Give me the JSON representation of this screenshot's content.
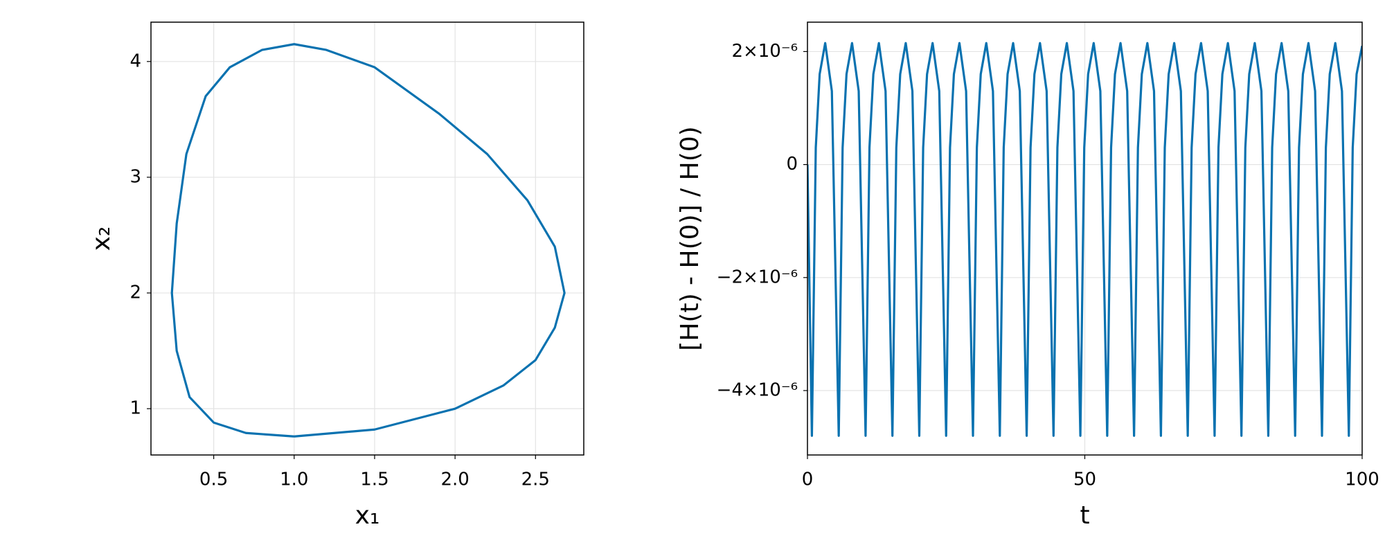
{
  "chart_data": [
    {
      "type": "line",
      "xlabel": "x₁",
      "ylabel": "x₂",
      "color": "#0a72b0",
      "grid": true,
      "x": [
        1.0,
        1.5,
        2.0,
        2.3,
        2.5,
        2.62,
        2.68,
        2.62,
        2.45,
        2.2,
        1.9,
        1.5,
        1.2,
        1.0,
        0.8,
        0.6,
        0.45,
        0.33,
        0.27,
        0.24,
        0.27,
        0.35,
        0.5,
        0.7,
        1.0
      ],
      "values": [
        0.76,
        0.82,
        1.0,
        1.2,
        1.42,
        1.7,
        2.0,
        2.4,
        2.8,
        3.2,
        3.55,
        3.95,
        4.1,
        4.15,
        4.1,
        3.95,
        3.7,
        3.2,
        2.6,
        2.0,
        1.5,
        1.1,
        0.88,
        0.79,
        0.76
      ],
      "xlim": [
        0.11,
        2.8
      ],
      "ylim": [
        0.6,
        4.34
      ],
      "xticks": [
        0.5,
        {
          "value": 1.0,
          "label": "1.0"
        },
        1.5,
        {
          "value": 2.0,
          "label": "2.0"
        },
        2.5
      ],
      "yticks": [
        1,
        2,
        3,
        4
      ]
    },
    {
      "type": "line",
      "xlabel": "t",
      "ylabel": "[H(t) - H(0)] / H(0)",
      "color": "#0a72b0",
      "grid": true,
      "x": [
        0,
        0.8,
        1.5,
        2.2,
        3.2,
        4.4,
        5.64,
        6.34,
        7.04,
        8.04,
        9.24,
        10.48,
        11.18,
        11.88,
        12.88,
        14.08,
        15.32,
        16.02,
        16.72,
        17.72,
        18.92,
        20.16,
        20.86,
        21.56,
        22.56,
        23.76,
        25,
        25.7,
        26.4,
        27.4,
        28.6,
        29.84,
        30.54,
        31.24,
        32.24,
        33.44,
        34.68,
        35.38,
        36.08,
        37.08,
        38.28,
        39.52,
        40.22,
        40.92,
        41.92,
        43.12,
        44.36,
        45.06,
        45.76,
        46.76,
        47.96,
        49.2,
        49.9,
        50.6,
        51.6,
        52.8,
        54.04,
        54.74,
        55.44,
        56.44,
        57.64,
        58.88,
        59.58,
        60.28,
        61.28,
        62.48,
        63.72,
        64.42,
        65.12,
        66.12,
        67.32,
        68.56,
        69.26,
        69.96,
        70.96,
        72.16,
        73.4,
        74.1,
        74.8,
        75.8,
        77,
        78.24,
        78.94,
        79.64,
        80.64,
        81.84,
        83.08,
        83.78,
        84.48,
        85.48,
        86.68,
        87.92,
        88.62,
        89.32,
        90.32,
        91.52,
        92.76,
        93.46,
        94.16,
        95.16,
        96.36,
        97.6,
        98.3,
        99.0,
        100
      ],
      "values": [
        0,
        -4.8e-06,
        3e-07,
        1.6e-06,
        2.15e-06,
        1.3e-06,
        -4.8e-06,
        3e-07,
        1.6e-06,
        2.15e-06,
        1.3e-06,
        -4.8e-06,
        3e-07,
        1.6e-06,
        2.15e-06,
        1.3e-06,
        -4.8e-06,
        3e-07,
        1.6e-06,
        2.15e-06,
        1.3e-06,
        -4.8e-06,
        3e-07,
        1.6e-06,
        2.15e-06,
        1.3e-06,
        -4.8e-06,
        3e-07,
        1.6e-06,
        2.15e-06,
        1.3e-06,
        -4.8e-06,
        3e-07,
        1.6e-06,
        2.15e-06,
        1.3e-06,
        -4.8e-06,
        3e-07,
        1.6e-06,
        2.15e-06,
        1.3e-06,
        -4.8e-06,
        3e-07,
        1.6e-06,
        2.15e-06,
        1.3e-06,
        -4.8e-06,
        3e-07,
        1.6e-06,
        2.15e-06,
        1.3e-06,
        -4.8e-06,
        3e-07,
        1.6e-06,
        2.15e-06,
        1.3e-06,
        -4.8e-06,
        3e-07,
        1.6e-06,
        2.15e-06,
        1.3e-06,
        -4.8e-06,
        3e-07,
        1.6e-06,
        2.15e-06,
        1.3e-06,
        -4.8e-06,
        3e-07,
        1.6e-06,
        2.15e-06,
        1.3e-06,
        -4.8e-06,
        3e-07,
        1.6e-06,
        2.15e-06,
        1.3e-06,
        -4.8e-06,
        3e-07,
        1.6e-06,
        2.15e-06,
        1.3e-06,
        -4.8e-06,
        3e-07,
        1.6e-06,
        2.15e-06,
        1.3e-06,
        -4.8e-06,
        3e-07,
        1.6e-06,
        2.15e-06,
        1.3e-06,
        -4.8e-06,
        3e-07,
        1.6e-06,
        2.15e-06,
        1.3e-06,
        -4.8e-06,
        3e-07,
        1.6e-06,
        2.15e-06,
        1.3e-06,
        -4.8e-06,
        3e-07,
        1.6e-06,
        2.1e-06
      ],
      "xlim": [
        0,
        100
      ],
      "ylim": [
        -5.14e-06,
        2.52e-06
      ],
      "xticks": [
        0,
        50,
        100
      ],
      "yticks": [
        {
          "value": 2e-06,
          "label": "2×10⁻⁶"
        },
        0,
        {
          "value": -2e-06,
          "label": "−2×10⁻⁶"
        },
        {
          "value": -4e-06,
          "label": "−4×10⁻⁶"
        }
      ]
    }
  ]
}
